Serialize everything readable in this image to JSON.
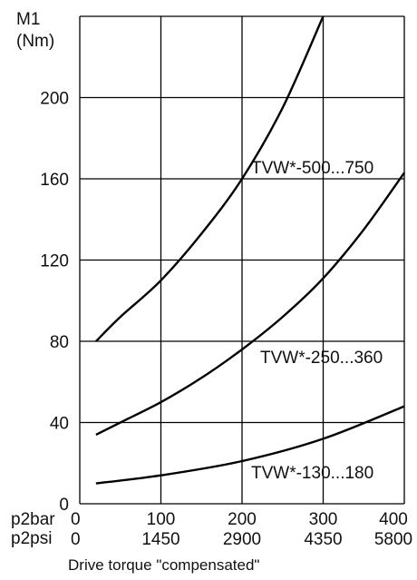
{
  "chart_data": {
    "type": "line",
    "ylabel_line1": "M1",
    "ylabel_line2": "(Nm)",
    "xlabel": "Drive torque \"compensated\"",
    "x_bar_label": "p2bar",
    "x_psi_label": "p2psi",
    "x_bar_ticks": [
      "0",
      "100",
      "200",
      "300",
      "400"
    ],
    "x_psi_ticks": [
      "0",
      "1450",
      "2900",
      "4350",
      "5800"
    ],
    "xlim": [
      0,
      400
    ],
    "ylim": [
      0,
      240
    ],
    "y_ticks": [
      0,
      40,
      80,
      120,
      160,
      200
    ],
    "grid": true,
    "series": [
      {
        "name": "TVW*-500...750",
        "x": [
          20,
          50,
          100,
          150,
          200,
          250,
          300
        ],
        "y": [
          80,
          92,
          110,
          133,
          160,
          195,
          240
        ]
      },
      {
        "name": "TVW*-250...360",
        "x": [
          20,
          50,
          100,
          150,
          200,
          250,
          300,
          350,
          400
        ],
        "y": [
          34,
          40,
          50,
          62,
          76,
          92,
          111,
          135,
          163
        ]
      },
      {
        "name": "TVW*-130...180",
        "x": [
          20,
          100,
          200,
          300,
          400
        ],
        "y": [
          10,
          14,
          21,
          32,
          48
        ]
      }
    ]
  }
}
